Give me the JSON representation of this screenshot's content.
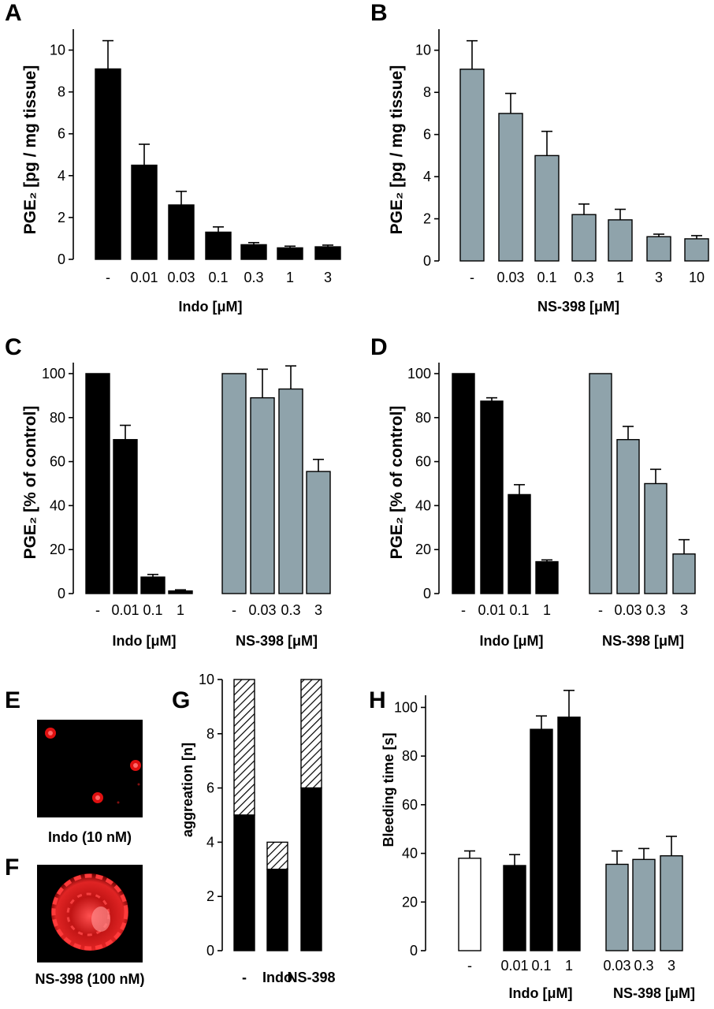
{
  "panels": {
    "A": {
      "letter": "A",
      "ylabel": "PGE₂ [pg / mg tissue]",
      "xlabel": "Indo [μM]"
    },
    "B": {
      "letter": "B",
      "ylabel": "PGE₂ [pg / mg tissue]",
      "xlabel": "NS-398 [μM]"
    },
    "C": {
      "letter": "C",
      "ylabel": "PGE₂ [% of control]",
      "group1": "Indo [μM]",
      "group2": "NS-398 [μM]"
    },
    "D": {
      "letter": "D",
      "ylabel": "PGE₂ [% of control]",
      "group1": "Indo [μM]",
      "group2": "NS-398 [μM]"
    },
    "E": {
      "letter": "E",
      "caption": "Indo (10 nM)"
    },
    "F": {
      "letter": "F",
      "caption": "NS-398 (100 nM)"
    },
    "G": {
      "letter": "G",
      "ylabel": "aggreation [n]"
    },
    "H": {
      "letter": "H",
      "ylabel": "Bleeding time [s]",
      "group1": "Indo [μM]",
      "group2": "NS-398 [μM]"
    }
  },
  "colors": {
    "black_bar": "#000000",
    "gray_bar": "#8fa3ab",
    "white_bar": "#ffffff",
    "micro_background": "#000000",
    "micro_red": "#e01010"
  },
  "chart_data": [
    {
      "panel": "A",
      "type": "bar",
      "categories": [
        "-",
        "0.01",
        "0.03",
        "0.1",
        "0.3",
        "1",
        "3"
      ],
      "values": [
        9.1,
        4.5,
        2.6,
        1.3,
        0.7,
        0.55,
        0.6
      ],
      "errors": [
        1.35,
        1.0,
        0.65,
        0.25,
        0.1,
        0.08,
        0.08
      ],
      "ylim": [
        0,
        11
      ],
      "yticks": [
        0,
        2,
        4,
        6,
        8,
        10
      ],
      "color": "black"
    },
    {
      "panel": "B",
      "type": "bar",
      "categories": [
        "-",
        "0.03",
        "0.1",
        "0.3",
        "1",
        "3",
        "10"
      ],
      "values": [
        9.1,
        7.0,
        5.0,
        2.2,
        1.95,
        1.15,
        1.05
      ],
      "errors": [
        1.35,
        0.95,
        1.15,
        0.5,
        0.5,
        0.12,
        0.15
      ],
      "ylim": [
        0,
        11
      ],
      "yticks": [
        0,
        2,
        4,
        6,
        8,
        10
      ],
      "color": "gray"
    },
    {
      "panel": "C",
      "type": "bar",
      "ylim": [
        0,
        105
      ],
      "yticks": [
        0,
        20,
        40,
        60,
        80,
        100
      ],
      "groups": [
        {
          "categories": [
            "-",
            "0.01",
            "0.1",
            "1"
          ],
          "values": [
            100,
            70,
            7.5,
            1.2
          ],
          "errors": [
            0,
            6.5,
            1.2,
            0.5
          ],
          "color": "black"
        },
        {
          "categories": [
            "-",
            "0.03",
            "0.3",
            "3"
          ],
          "values": [
            100,
            89,
            93,
            55.5
          ],
          "errors": [
            0,
            13,
            10.5,
            5.5
          ],
          "color": "gray"
        }
      ]
    },
    {
      "panel": "D",
      "type": "bar",
      "ylim": [
        0,
        105
      ],
      "yticks": [
        0,
        20,
        40,
        60,
        80,
        100
      ],
      "groups": [
        {
          "categories": [
            "-",
            "0.01",
            "0.1",
            "1"
          ],
          "values": [
            100,
            87.5,
            45,
            14.5
          ],
          "errors": [
            0,
            1.5,
            4.5,
            0.8
          ],
          "color": "black"
        },
        {
          "categories": [
            "-",
            "0.03",
            "0.3",
            "3"
          ],
          "values": [
            100,
            70,
            50,
            18
          ],
          "errors": [
            0,
            6,
            6.5,
            6.5
          ],
          "color": "gray"
        }
      ]
    },
    {
      "panel": "G",
      "type": "bar",
      "stacked": true,
      "categories": [
        "-",
        "Indo",
        "NS-398"
      ],
      "series": [
        {
          "values": [
            5,
            3,
            6
          ],
          "fill": "solid black"
        },
        {
          "values": [
            5,
            1,
            4
          ],
          "fill": "hatched"
        }
      ],
      "ylim": [
        0,
        10
      ],
      "yticks": [
        0,
        2,
        4,
        6,
        8,
        10
      ]
    },
    {
      "panel": "H",
      "type": "bar",
      "ylim": [
        0,
        105
      ],
      "yticks": [
        0,
        20,
        40,
        60,
        80,
        100
      ],
      "groups": [
        {
          "categories": [
            "-"
          ],
          "values": [
            38
          ],
          "errors": [
            3
          ],
          "color": "white"
        },
        {
          "categories": [
            "0.01",
            "0.1",
            "1"
          ],
          "values": [
            35,
            91,
            96
          ],
          "errors": [
            4.5,
            5.5,
            11
          ],
          "color": "black"
        },
        {
          "categories": [
            "0.03",
            "0.3",
            "3"
          ],
          "values": [
            35.5,
            37.5,
            39
          ],
          "errors": [
            5.5,
            4.5,
            8
          ],
          "color": "gray"
        }
      ]
    }
  ]
}
